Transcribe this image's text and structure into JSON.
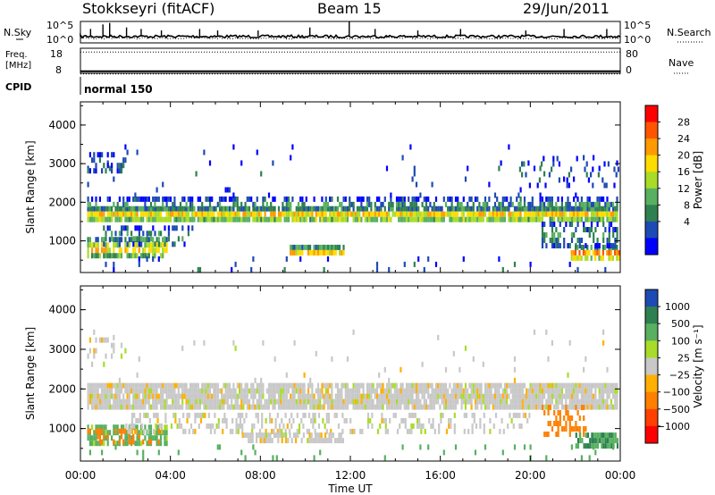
{
  "header": {
    "title": "Stokkseyri (fitACF)",
    "beam": "Beam 15",
    "date": "29/Jun/2011"
  },
  "chart_data": [
    {
      "type": "line",
      "panel": "noise",
      "left_label": "N.Sky",
      "right_label": "N.Search",
      "left_ticks": [
        "10^5",
        "10^0"
      ],
      "right_ticks": [
        "10^5",
        "10^0"
      ],
      "series": [
        {
          "name": "N.Sky",
          "style": "solid"
        },
        {
          "name": "N.Search",
          "style": "dotted"
        }
      ],
      "baseline_level": 0.3,
      "spikes": [
        {
          "x": 0.45,
          "h": 0.5
        },
        {
          "x": 1.0,
          "h": 0.8
        },
        {
          "x": 1.3,
          "h": 0.9
        },
        {
          "x": 2.05,
          "h": 0.6
        },
        {
          "x": 2.7,
          "h": 0.5
        },
        {
          "x": 3.6,
          "h": 0.4
        },
        {
          "x": 5.3,
          "h": 0.5
        },
        {
          "x": 6.1,
          "h": 0.4
        },
        {
          "x": 7.9,
          "h": 0.4
        },
        {
          "x": 10.2,
          "h": 0.6
        },
        {
          "x": 11.95,
          "h": 1.0
        },
        {
          "x": 13.1,
          "h": 0.5
        },
        {
          "x": 15.0,
          "h": 0.4
        },
        {
          "x": 16.9,
          "h": 0.5
        },
        {
          "x": 19.8,
          "h": 0.4
        },
        {
          "x": 21.5,
          "h": 0.5
        },
        {
          "x": 23.4,
          "h": 0.5
        }
      ]
    },
    {
      "type": "line",
      "panel": "frequency",
      "left_label": "Freq. [MHz]",
      "right_label": "Nave",
      "left_ticks": [
        18,
        8
      ],
      "right_ticks": [
        80,
        0
      ],
      "freq_dotted_level": 0.85,
      "freq_solid_level": 0.08,
      "cpid_label": "CPID",
      "cpid_value": "normal 150"
    },
    {
      "type": "heatmap",
      "panel": "power",
      "x_range_hours": [
        0,
        24
      ],
      "xticks": [
        "00:00",
        "04:00",
        "08:00",
        "12:00",
        "16:00",
        "20:00",
        "00:00"
      ],
      "ylabel": "Slant Range [km]",
      "ylim": [
        180,
        4600
      ],
      "yticks": [
        1000,
        2000,
        3000,
        4000
      ],
      "colorbar_label": "Power [dB]",
      "colorbar_ticks": [
        28,
        24,
        20,
        16,
        12,
        8,
        4
      ],
      "colorbar_colors": [
        "#ff0000",
        "#ff5500",
        "#ff9a00",
        "#ffdc00",
        "#a8dc28",
        "#58b060",
        "#2e8050",
        "#1e4ab4",
        "#0000ff"
      ],
      "bands": [
        {
          "name": "main F-region echo",
          "x0": 0.3,
          "x1": 23.9,
          "range_km": [
            1550,
            1900
          ],
          "dB": 20,
          "density": 0.9
        },
        {
          "name": "upper band edge",
          "x0": 0.3,
          "x1": 23.9,
          "range_km": [
            1900,
            2150
          ],
          "dB": 9,
          "density": 0.5
        },
        {
          "name": "near-range E echo (early)",
          "x0": 0.3,
          "x1": 3.8,
          "range_km": [
            620,
            1100
          ],
          "dB": 20,
          "density": 0.75
        },
        {
          "name": "scattered mid (early)",
          "x0": 1.0,
          "x1": 5.0,
          "range_km": [
            900,
            1400
          ],
          "dB": 10,
          "density": 0.35
        },
        {
          "name": "afternoon short-range echo",
          "x0": 9.3,
          "x1": 11.7,
          "range_km": [
            700,
            900
          ],
          "dB": 24,
          "density": 0.95
        },
        {
          "name": "late near-range echo",
          "x0": 21.8,
          "x1": 23.9,
          "range_km": [
            550,
            900
          ],
          "dB": 24,
          "density": 0.75
        },
        {
          "name": "late patchy mid",
          "x0": 20.5,
          "x1": 23.9,
          "range_km": [
            900,
            1500
          ],
          "dB": 9,
          "density": 0.4
        },
        {
          "name": "scattered far",
          "x0": 0.3,
          "x1": 23.9,
          "range_km": [
            2200,
            3500
          ],
          "dB": 5,
          "density": 0.02
        },
        {
          "name": "early far cluster",
          "x0": 0.3,
          "x1": 2.0,
          "range_km": [
            2800,
            3300
          ],
          "dB": 6,
          "density": 0.3
        },
        {
          "name": "late far cluster",
          "x0": 19.5,
          "x1": 23.9,
          "range_km": [
            2400,
            3200
          ],
          "dB": 6,
          "density": 0.1
        },
        {
          "name": "ground-level scatter",
          "x0": 0.3,
          "x1": 23.9,
          "range_km": [
            200,
            600
          ],
          "dB": 6,
          "density": 0.04
        }
      ]
    },
    {
      "type": "heatmap",
      "panel": "velocity",
      "x_range_hours": [
        0,
        24
      ],
      "xticks": [
        "00:00",
        "04:00",
        "08:00",
        "12:00",
        "16:00",
        "20:00",
        "00:00"
      ],
      "xlabel": "Time UT",
      "ylabel": "Slant Range [km]",
      "ylim": [
        180,
        4600
      ],
      "yticks": [
        1000,
        2000,
        3000,
        4000
      ],
      "colorbar_label": "Velocity [m s⁻¹]",
      "colorbar_ticks": [
        "1000",
        "500",
        "100",
        "25",
        "−25",
        "−100",
        "−500",
        "−1000"
      ],
      "colorbar_colors": [
        "#1e4ab4",
        "#2e8050",
        "#58b060",
        "#a8dc28",
        "#c8c8c8",
        "#ffb000",
        "#ff8000",
        "#ff4000",
        "#ff0000"
      ],
      "bands": [
        {
          "name": "main band (near zero)",
          "x0": 0.3,
          "x1": 23.9,
          "range_km": [
            1550,
            2150
          ],
          "v": 0,
          "density": 0.9
        },
        {
          "name": "early near-range (mixed)",
          "x0": 0.3,
          "x1": 3.8,
          "range_km": [
            620,
            1100
          ],
          "v": 100,
          "density": 0.7
        },
        {
          "name": "early flow orange",
          "x0": 0.3,
          "x1": 3.5,
          "range_km": [
            700,
            1000
          ],
          "v": -300,
          "density": 0.3
        },
        {
          "name": "grey mid-range",
          "x0": 2.0,
          "x1": 20.0,
          "range_km": [
            900,
            1400
          ],
          "v": 0,
          "density": 0.3
        },
        {
          "name": "afternoon short-range",
          "x0": 7.0,
          "x1": 11.7,
          "range_km": [
            700,
            900
          ],
          "v": 0,
          "density": 0.7
        },
        {
          "name": "late orange",
          "x0": 20.5,
          "x1": 22.5,
          "range_km": [
            900,
            1600
          ],
          "v": -200,
          "density": 0.3
        },
        {
          "name": "late green",
          "x0": 22.0,
          "x1": 23.9,
          "range_km": [
            550,
            900
          ],
          "v": 300,
          "density": 0.75
        },
        {
          "name": "scattered far",
          "x0": 0.3,
          "x1": 23.9,
          "range_km": [
            2200,
            3500
          ],
          "v": 0,
          "density": 0.02
        },
        {
          "name": "early far cluster",
          "x0": 0.3,
          "x1": 2.0,
          "range_km": [
            2800,
            3300
          ],
          "v": 0,
          "density": 0.25
        },
        {
          "name": "ground-level green",
          "x0": 0.3,
          "x1": 23.9,
          "range_km": [
            200,
            600
          ],
          "v": 200,
          "density": 0.05
        }
      ]
    }
  ]
}
